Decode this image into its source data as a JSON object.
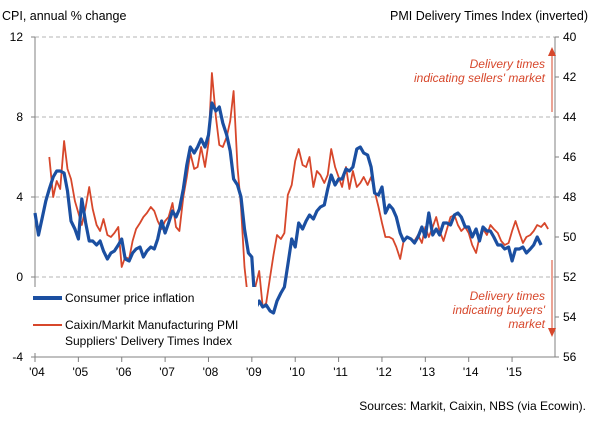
{
  "chart_data": {
    "type": "line",
    "left_axis_title": "CPI, annual % change",
    "right_axis_title": "PMI Delivery Times Index (inverted)",
    "left_ylim": [
      -4,
      12
    ],
    "left_ticks": [
      -4,
      0,
      4,
      8,
      12
    ],
    "right_ylim": [
      56,
      40
    ],
    "right_ticks": [
      40,
      42,
      44,
      46,
      48,
      50,
      52,
      54,
      56
    ],
    "right_inverted": true,
    "x_range": [
      2004.0,
      2015.99
    ],
    "x_tick_labels": [
      "'04",
      "'05",
      "'06",
      "'07",
      "'08",
      "'09",
      "'10",
      "'11",
      "'12",
      "'13",
      "'14",
      "'15"
    ],
    "grid": true,
    "colors": {
      "cpi": "#1b4fa1",
      "pmi": "#d7472b",
      "annotation": "#d7472b"
    },
    "annotations": {
      "top": "Delivery times indicating sellers' market",
      "top_lines": [
        "Delivery times",
        "indicating sellers' market"
      ],
      "bottom": "Delivery times indicating buyers' market",
      "bottom_lines": [
        "Delivery times",
        "indicating buyers'",
        "market"
      ]
    },
    "source": "Sources: Markit,  Caixin, NBS (via Ecowin).",
    "series": [
      {
        "name": "Consumer price inflation",
        "axis": "left",
        "points": [
          [
            2004.0,
            3.2
          ],
          [
            2004.08,
            2.1
          ],
          [
            2004.17,
            3.0
          ],
          [
            2004.25,
            3.8
          ],
          [
            2004.33,
            4.4
          ],
          [
            2004.42,
            5.0
          ],
          [
            2004.5,
            5.3
          ],
          [
            2004.58,
            5.3
          ],
          [
            2004.67,
            5.2
          ],
          [
            2004.75,
            4.3
          ],
          [
            2004.83,
            2.8
          ],
          [
            2004.92,
            2.4
          ],
          [
            2005.0,
            1.9
          ],
          [
            2005.08,
            3.9
          ],
          [
            2005.17,
            2.7
          ],
          [
            2005.25,
            1.8
          ],
          [
            2005.33,
            1.8
          ],
          [
            2005.42,
            1.6
          ],
          [
            2005.5,
            1.8
          ],
          [
            2005.58,
            1.3
          ],
          [
            2005.67,
            0.9
          ],
          [
            2005.75,
            1.2
          ],
          [
            2005.83,
            1.3
          ],
          [
            2005.92,
            1.6
          ],
          [
            2006.0,
            1.9
          ],
          [
            2006.08,
            0.9
          ],
          [
            2006.17,
            0.8
          ],
          [
            2006.25,
            1.2
          ],
          [
            2006.33,
            1.4
          ],
          [
            2006.42,
            1.5
          ],
          [
            2006.5,
            1.0
          ],
          [
            2006.58,
            1.3
          ],
          [
            2006.67,
            1.5
          ],
          [
            2006.75,
            1.4
          ],
          [
            2006.83,
            1.9
          ],
          [
            2006.92,
            2.8
          ],
          [
            2007.0,
            2.2
          ],
          [
            2007.08,
            2.7
          ],
          [
            2007.17,
            3.3
          ],
          [
            2007.25,
            3.0
          ],
          [
            2007.33,
            3.4
          ],
          [
            2007.42,
            4.4
          ],
          [
            2007.5,
            5.6
          ],
          [
            2007.58,
            6.5
          ],
          [
            2007.67,
            6.2
          ],
          [
            2007.75,
            6.5
          ],
          [
            2007.83,
            6.9
          ],
          [
            2007.92,
            6.5
          ],
          [
            2008.0,
            7.1
          ],
          [
            2008.08,
            8.7
          ],
          [
            2008.17,
            8.3
          ],
          [
            2008.25,
            8.5
          ],
          [
            2008.33,
            7.7
          ],
          [
            2008.42,
            7.1
          ],
          [
            2008.5,
            6.3
          ],
          [
            2008.58,
            4.9
          ],
          [
            2008.67,
            4.6
          ],
          [
            2008.75,
            4.0
          ],
          [
            2008.83,
            2.4
          ],
          [
            2008.92,
            1.2
          ],
          [
            2009.0,
            1.0
          ],
          [
            2009.08,
            -1.6
          ],
          [
            2009.17,
            -1.2
          ],
          [
            2009.25,
            -1.5
          ],
          [
            2009.33,
            -1.4
          ],
          [
            2009.42,
            -1.7
          ],
          [
            2009.5,
            -1.8
          ],
          [
            2009.58,
            -1.2
          ],
          [
            2009.67,
            -0.8
          ],
          [
            2009.75,
            -0.5
          ],
          [
            2009.83,
            0.6
          ],
          [
            2009.92,
            1.9
          ],
          [
            2010.0,
            1.5
          ],
          [
            2010.08,
            2.7
          ],
          [
            2010.17,
            2.4
          ],
          [
            2010.25,
            2.8
          ],
          [
            2010.33,
            3.1
          ],
          [
            2010.42,
            2.9
          ],
          [
            2010.5,
            3.3
          ],
          [
            2010.58,
            3.5
          ],
          [
            2010.67,
            3.6
          ],
          [
            2010.75,
            4.4
          ],
          [
            2010.83,
            5.1
          ],
          [
            2010.92,
            4.6
          ],
          [
            2011.0,
            4.9
          ],
          [
            2011.08,
            4.9
          ],
          [
            2011.17,
            5.4
          ],
          [
            2011.25,
            5.3
          ],
          [
            2011.33,
            5.5
          ],
          [
            2011.42,
            6.4
          ],
          [
            2011.5,
            6.5
          ],
          [
            2011.58,
            6.2
          ],
          [
            2011.67,
            6.1
          ],
          [
            2011.75,
            5.5
          ],
          [
            2011.83,
            4.2
          ],
          [
            2011.92,
            4.1
          ],
          [
            2012.0,
            4.5
          ],
          [
            2012.08,
            3.2
          ],
          [
            2012.17,
            3.6
          ],
          [
            2012.25,
            3.4
          ],
          [
            2012.33,
            3.0
          ],
          [
            2012.42,
            2.2
          ],
          [
            2012.5,
            1.8
          ],
          [
            2012.58,
            2.0
          ],
          [
            2012.67,
            1.9
          ],
          [
            2012.75,
            1.7
          ],
          [
            2012.83,
            2.0
          ],
          [
            2012.92,
            2.5
          ],
          [
            2013.0,
            2.0
          ],
          [
            2013.08,
            3.2
          ],
          [
            2013.17,
            2.1
          ],
          [
            2013.25,
            2.4
          ],
          [
            2013.33,
            2.1
          ],
          [
            2013.42,
            2.7
          ],
          [
            2013.5,
            2.7
          ],
          [
            2013.58,
            2.6
          ],
          [
            2013.67,
            3.1
          ],
          [
            2013.75,
            3.2
          ],
          [
            2013.83,
            3.0
          ],
          [
            2013.92,
            2.5
          ],
          [
            2014.0,
            2.5
          ],
          [
            2014.08,
            2.0
          ],
          [
            2014.17,
            2.4
          ],
          [
            2014.25,
            1.8
          ],
          [
            2014.33,
            2.5
          ],
          [
            2014.42,
            2.3
          ],
          [
            2014.5,
            2.3
          ],
          [
            2014.58,
            2.0
          ],
          [
            2014.67,
            1.6
          ],
          [
            2014.75,
            1.6
          ],
          [
            2014.83,
            1.4
          ],
          [
            2014.92,
            1.5
          ],
          [
            2015.0,
            0.8
          ],
          [
            2015.08,
            1.4
          ],
          [
            2015.17,
            1.4
          ],
          [
            2015.25,
            1.5
          ],
          [
            2015.33,
            1.2
          ],
          [
            2015.42,
            1.4
          ],
          [
            2015.5,
            1.6
          ],
          [
            2015.58,
            2.0
          ],
          [
            2015.67,
            1.6
          ]
        ]
      },
      {
        "name": "Caixin/Markit Manufacturing PMI Suppliers' Delivery Times Index",
        "name_lines": [
          "Caixin/Markit Manufacturing PMI",
          "Suppliers' Delivery Times Index"
        ],
        "axis": "right",
        "points": [
          [
            2004.33,
            46.0
          ],
          [
            2004.42,
            48.0
          ],
          [
            2004.5,
            47.2
          ],
          [
            2004.58,
            47.6
          ],
          [
            2004.67,
            45.2
          ],
          [
            2004.75,
            46.6
          ],
          [
            2004.83,
            47.1
          ],
          [
            2004.92,
            48.2
          ],
          [
            2005.0,
            48.8
          ],
          [
            2005.08,
            49.4
          ],
          [
            2005.17,
            48.5
          ],
          [
            2005.25,
            47.5
          ],
          [
            2005.33,
            48.6
          ],
          [
            2005.42,
            49.4
          ],
          [
            2005.5,
            49.7
          ],
          [
            2005.58,
            49.1
          ],
          [
            2005.67,
            49.9
          ],
          [
            2005.75,
            50.0
          ],
          [
            2005.83,
            49.8
          ],
          [
            2005.92,
            49.5
          ],
          [
            2006.0,
            51.5
          ],
          [
            2006.08,
            51.0
          ],
          [
            2006.17,
            51.1
          ],
          [
            2006.25,
            50.2
          ],
          [
            2006.33,
            49.6
          ],
          [
            2006.42,
            49.3
          ],
          [
            2006.5,
            49.0
          ],
          [
            2006.58,
            48.8
          ],
          [
            2006.67,
            48.5
          ],
          [
            2006.75,
            48.7
          ],
          [
            2006.83,
            49.2
          ],
          [
            2006.92,
            49.6
          ],
          [
            2007.0,
            49.2
          ],
          [
            2007.08,
            49.0
          ],
          [
            2007.17,
            48.3
          ],
          [
            2007.25,
            49.5
          ],
          [
            2007.33,
            49.7
          ],
          [
            2007.42,
            48.0
          ],
          [
            2007.5,
            47.0
          ],
          [
            2007.58,
            45.8
          ],
          [
            2007.67,
            46.6
          ],
          [
            2007.75,
            46.5
          ],
          [
            2007.83,
            45.5
          ],
          [
            2007.92,
            46.5
          ],
          [
            2008.0,
            45.3
          ],
          [
            2008.08,
            41.8
          ],
          [
            2008.17,
            44.0
          ],
          [
            2008.25,
            45.4
          ],
          [
            2008.33,
            45.5
          ],
          [
            2008.42,
            45.0
          ],
          [
            2008.5,
            44.2
          ],
          [
            2008.58,
            42.7
          ],
          [
            2008.67,
            46.5
          ],
          [
            2008.75,
            48.5
          ],
          [
            2008.83,
            51.5
          ],
          [
            2008.92,
            53.3
          ],
          [
            2009.0,
            54.0
          ],
          [
            2009.08,
            52.5
          ],
          [
            2009.17,
            51.7
          ],
          [
            2009.25,
            53.5
          ],
          [
            2009.33,
            53.3
          ],
          [
            2009.42,
            52.0
          ],
          [
            2009.5,
            50.9
          ],
          [
            2009.58,
            49.9
          ],
          [
            2009.67,
            50.1
          ],
          [
            2009.75,
            49.8
          ],
          [
            2009.83,
            47.9
          ],
          [
            2009.92,
            47.4
          ],
          [
            2010.0,
            46.2
          ],
          [
            2010.08,
            45.6
          ],
          [
            2010.17,
            46.4
          ],
          [
            2010.25,
            46.5
          ],
          [
            2010.33,
            46.0
          ],
          [
            2010.42,
            47.5
          ],
          [
            2010.5,
            46.7
          ],
          [
            2010.58,
            46.9
          ],
          [
            2010.67,
            47.3
          ],
          [
            2010.75,
            46.9
          ],
          [
            2010.83,
            45.6
          ],
          [
            2010.92,
            46.5
          ],
          [
            2011.0,
            47.0
          ],
          [
            2011.08,
            47.5
          ],
          [
            2011.17,
            46.5
          ],
          [
            2011.25,
            47.6
          ],
          [
            2011.33,
            46.7
          ],
          [
            2011.42,
            47.5
          ],
          [
            2011.5,
            47.3
          ],
          [
            2011.58,
            47.0
          ],
          [
            2011.67,
            47.4
          ],
          [
            2011.75,
            47.0
          ],
          [
            2011.83,
            47.7
          ],
          [
            2011.92,
            48.5
          ],
          [
            2012.0,
            49.3
          ],
          [
            2012.08,
            50.0
          ],
          [
            2012.17,
            50.0
          ],
          [
            2012.25,
            50.1
          ],
          [
            2012.33,
            50.5
          ],
          [
            2012.42,
            51.1
          ],
          [
            2012.5,
            50.2
          ],
          [
            2012.58,
            50.0
          ],
          [
            2012.67,
            50.1
          ],
          [
            2012.75,
            50.2
          ],
          [
            2012.83,
            49.9
          ],
          [
            2012.92,
            50.3
          ],
          [
            2013.0,
            49.5
          ],
          [
            2013.08,
            50.0
          ],
          [
            2013.17,
            49.5
          ],
          [
            2013.25,
            49.0
          ],
          [
            2013.33,
            49.7
          ],
          [
            2013.42,
            50.2
          ],
          [
            2013.5,
            49.6
          ],
          [
            2013.58,
            49.0
          ],
          [
            2013.67,
            48.9
          ],
          [
            2013.75,
            49.4
          ],
          [
            2013.83,
            49.7
          ],
          [
            2013.92,
            49.5
          ],
          [
            2014.0,
            49.8
          ],
          [
            2014.08,
            50.4
          ],
          [
            2014.17,
            50.8
          ],
          [
            2014.25,
            50.0
          ],
          [
            2014.33,
            49.6
          ],
          [
            2014.42,
            49.9
          ],
          [
            2014.5,
            49.4
          ],
          [
            2014.58,
            49.6
          ],
          [
            2014.67,
            49.8
          ],
          [
            2014.75,
            50.2
          ],
          [
            2014.83,
            50.4
          ],
          [
            2014.92,
            50.3
          ],
          [
            2015.0,
            49.7
          ],
          [
            2015.08,
            49.2
          ],
          [
            2015.17,
            49.8
          ],
          [
            2015.25,
            50.3
          ],
          [
            2015.33,
            50.0
          ],
          [
            2015.42,
            49.9
          ],
          [
            2015.5,
            49.7
          ],
          [
            2015.58,
            49.4
          ],
          [
            2015.67,
            49.5
          ],
          [
            2015.75,
            49.3
          ],
          [
            2015.83,
            49.6
          ]
        ]
      }
    ]
  }
}
